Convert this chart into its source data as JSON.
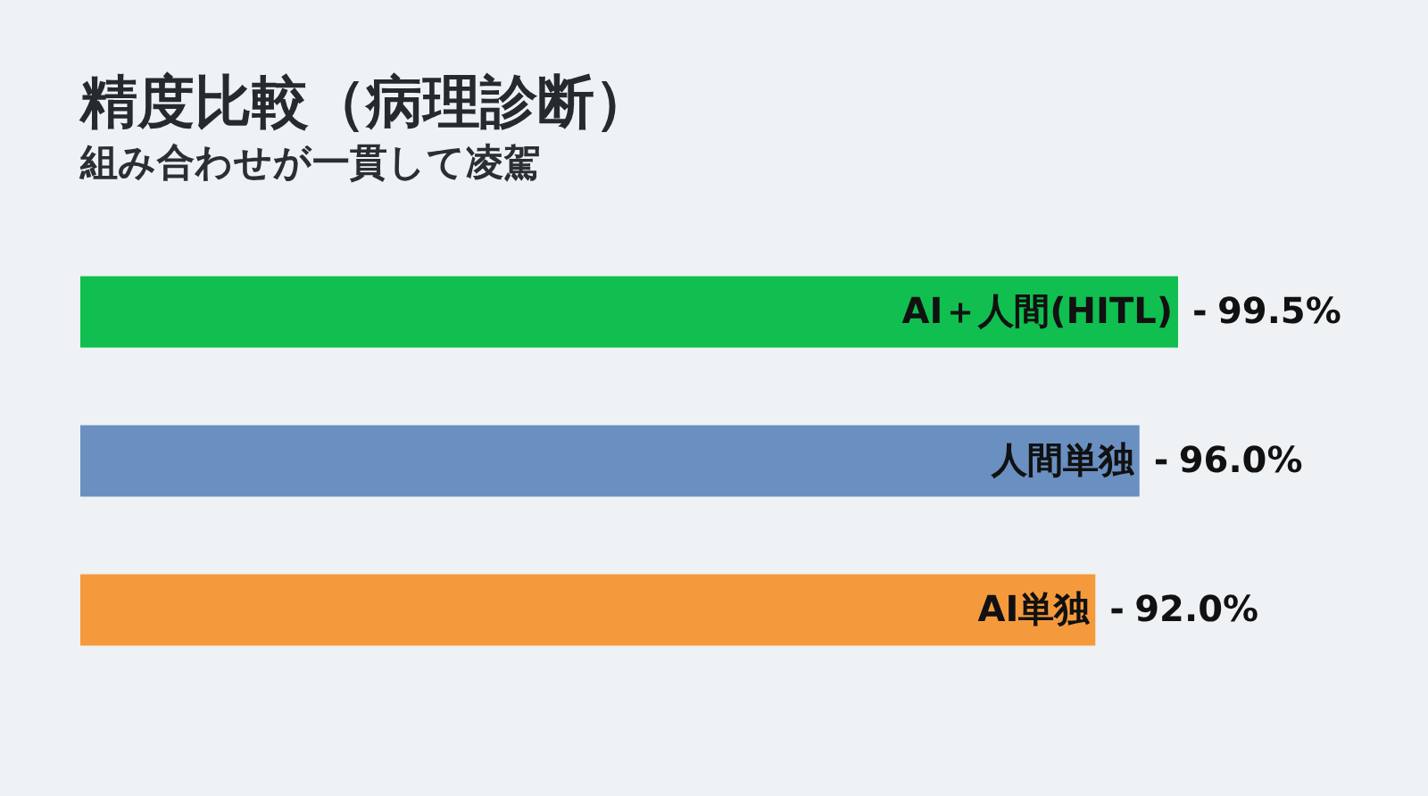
{
  "chart_data": {
    "type": "bar",
    "orientation": "horizontal",
    "title": "精度比較（病理診断）",
    "subtitle": "組み合わせが一貫して凌駕",
    "categories": [
      "AI＋人間(HITL)",
      "人間単独",
      "AI単独"
    ],
    "values": [
      99.5,
      96.0,
      92.0
    ],
    "colors": [
      "#10bf50",
      "#6a8fc1",
      "#f59a3c"
    ],
    "value_labels": [
      "99.5%",
      "96.0%",
      "92.0%"
    ],
    "annotations": [
      {
        "text": "-",
        "x": 99.5,
        "y": "AI＋人間(HITL)"
      },
      {
        "text": "-",
        "x": 96.0,
        "y": "人間単独"
      },
      {
        "text": "-",
        "x": 92.0,
        "y": "AI単独"
      }
    ]
  }
}
